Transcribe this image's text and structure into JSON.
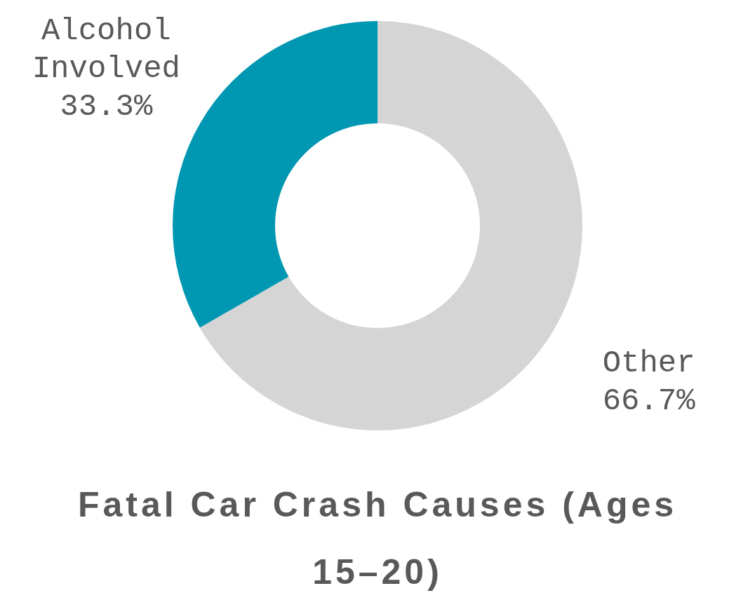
{
  "chart_data": {
    "type": "donut",
    "title": "Fatal Car Crash Causes (Ages 15–20)",
    "categories": [
      "Other",
      "Alcohol Involved"
    ],
    "values": [
      66.7,
      33.3
    ],
    "value_labels": [
      "66.7%",
      "33.3%"
    ],
    "colors": [
      "#d5d5d5",
      "#0097b2"
    ],
    "legend": false
  }
}
